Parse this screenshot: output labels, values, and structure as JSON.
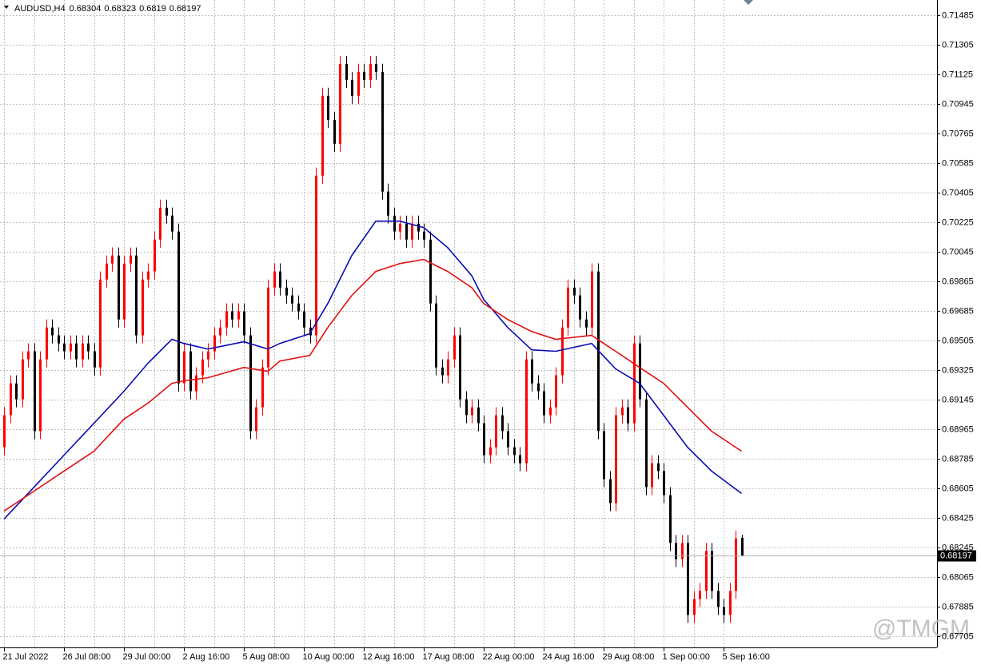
{
  "chart_data": {
    "type": "candlestick",
    "symbol": "AUDUSD,H4",
    "watermark": "@TMGM",
    "up_color": "#ff0000",
    "down_color": "#000000",
    "grid": true,
    "ylim": [
      0.67637,
      0.71577
    ],
    "yticks": [
      0.71485,
      0.71305,
      0.71125,
      0.70945,
      0.70765,
      0.70585,
      0.70405,
      0.70225,
      0.70045,
      0.69865,
      0.69685,
      0.69505,
      0.69325,
      0.69145,
      0.68965,
      0.68785,
      0.68605,
      0.68425,
      0.68245,
      0.68065,
      0.67885,
      0.67705
    ],
    "categories": [
      "21 Jul 2022",
      null,
      null,
      null,
      null,
      null,
      null,
      null,
      null,
      null,
      "26 Jul 08:00",
      null,
      null,
      null,
      null,
      null,
      null,
      null,
      null,
      null,
      "29 Jul 00:00",
      null,
      null,
      null,
      null,
      null,
      null,
      null,
      null,
      null,
      "2 Aug 16:00",
      null,
      null,
      null,
      null,
      null,
      null,
      null,
      null,
      null,
      "5 Aug 08:00",
      null,
      null,
      null,
      null,
      null,
      null,
      null,
      null,
      null,
      "10 Aug 00:00",
      null,
      null,
      null,
      null,
      null,
      null,
      null,
      null,
      null,
      "12 Aug 16:00",
      null,
      null,
      null,
      null,
      null,
      null,
      null,
      null,
      null,
      "17 Aug 08:00",
      null,
      null,
      null,
      null,
      null,
      null,
      null,
      null,
      null,
      "22 Aug 00:00",
      null,
      null,
      null,
      null,
      null,
      null,
      null,
      null,
      null,
      "24 Aug 16:00",
      null,
      null,
      null,
      null,
      null,
      null,
      null,
      null,
      null,
      "29 Aug 08:00",
      null,
      null,
      null,
      null,
      null,
      null,
      null,
      null,
      null,
      "1 Sep 00:00",
      null,
      null,
      null,
      null,
      null,
      null,
      null,
      null,
      null,
      "5 Sep 16:00",
      null,
      null,
      null
    ],
    "open": [
      0.68855,
      0.6905,
      0.69244,
      0.69147,
      0.6939,
      0.69439,
      0.68953,
      0.6939,
      0.69584,
      0.69536,
      0.69487,
      0.69439,
      0.69487,
      0.6939,
      0.69487,
      0.69439,
      0.69341,
      0.69876,
      0.69973,
      0.70022,
      0.69633,
      0.69973,
      0.70022,
      0.69536,
      0.69876,
      0.69925,
      0.70119,
      0.70313,
      0.70265,
      0.70168,
      0.69244,
      0.69439,
      0.69196,
      0.69293,
      0.6939,
      0.69439,
      0.69536,
      0.69584,
      0.69682,
      0.69633,
      0.69682,
      0.69536,
      0.68953,
      0.69098,
      0.69341,
      0.69827,
      0.69925,
      0.69827,
      0.69779,
      0.6973,
      0.69682,
      0.69584,
      0.69536,
      0.70508,
      0.70994,
      0.70848,
      0.70702,
      0.71188,
      0.71091,
      0.70994,
      0.7114,
      0.71091,
      0.71188,
      0.7114,
      0.70411,
      0.70265,
      0.70168,
      0.70216,
      0.70119,
      0.70216,
      0.70168,
      0.70119,
      0.6973,
      0.69341,
      0.69293,
      0.6939,
      0.69536,
      0.69147,
      0.6905,
      0.69098,
      0.69001,
      0.68807,
      0.68855,
      0.6905,
      0.68953,
      0.68855,
      0.68807,
      0.68758,
      0.6939,
      0.69244,
      0.69196,
      0.6905,
      0.69098,
      0.69293,
      0.69584,
      0.69827,
      0.69779,
      0.69633,
      0.69584,
      0.69925,
      0.68953,
      0.68661,
      0.68515,
      0.6905,
      0.69098,
      0.69001,
      0.69487,
      0.69147,
      0.68612,
      0.68758,
      0.6871,
      0.68564,
      0.68272,
      0.68175,
      0.68272,
      0.67835,
      0.67932,
      0.67981,
      0.68224,
      0.67981,
      0.67883,
      0.67835,
      0.67981,
      0.68304
    ],
    "high": [
      0.69099,
      0.69293,
      0.69293,
      0.69439,
      0.69488,
      0.69488,
      0.69439,
      0.69633,
      0.69633,
      0.69585,
      0.69536,
      0.69536,
      0.69536,
      0.69536,
      0.69536,
      0.69488,
      0.69925,
      0.70022,
      0.70071,
      0.70071,
      0.70022,
      0.70071,
      0.70071,
      0.69925,
      0.69974,
      0.70168,
      0.70362,
      0.70362,
      0.70314,
      0.70217,
      0.69488,
      0.69488,
      0.69342,
      0.69439,
      0.69488,
      0.69585,
      0.69633,
      0.69731,
      0.69731,
      0.69731,
      0.69731,
      0.69585,
      0.69147,
      0.6939,
      0.69876,
      0.69974,
      0.69974,
      0.69876,
      0.69828,
      0.69779,
      0.69731,
      0.69633,
      0.70557,
      0.71043,
      0.71043,
      0.70897,
      0.71237,
      0.71237,
      0.7114,
      0.71189,
      0.71189,
      0.71237,
      0.71237,
      0.71189,
      0.7046,
      0.70314,
      0.70265,
      0.70265,
      0.70265,
      0.70265,
      0.70217,
      0.70168,
      0.69779,
      0.6939,
      0.69439,
      0.69585,
      0.69585,
      0.69196,
      0.69147,
      0.69147,
      0.6905,
      0.68904,
      0.69099,
      0.69099,
      0.69002,
      0.68904,
      0.68856,
      0.69439,
      0.69439,
      0.69293,
      0.69245,
      0.69147,
      0.69342,
      0.69633,
      0.69876,
      0.69876,
      0.69828,
      0.69682,
      0.69974,
      0.69974,
      0.69002,
      0.6871,
      0.69099,
      0.69147,
      0.69147,
      0.69536,
      0.69536,
      0.69196,
      0.68807,
      0.68807,
      0.68759,
      0.68613,
      0.68321,
      0.68321,
      0.68321,
      0.67981,
      0.6803,
      0.68273,
      0.68273,
      0.6803,
      0.67932,
      0.6803,
      0.68349,
      0.68323
    ],
    "low": [
      0.68806,
      0.69001,
      0.69098,
      0.69098,
      0.69341,
      0.68904,
      0.68904,
      0.69341,
      0.69487,
      0.69438,
      0.6939,
      0.6939,
      0.69341,
      0.69341,
      0.6939,
      0.69292,
      0.69292,
      0.69827,
      0.69924,
      0.69584,
      0.69584,
      0.69924,
      0.69487,
      0.69487,
      0.69827,
      0.69876,
      0.7007,
      0.70216,
      0.70119,
      0.69195,
      0.69195,
      0.69147,
      0.69147,
      0.69244,
      0.69341,
      0.6939,
      0.69487,
      0.69535,
      0.69584,
      0.69584,
      0.69487,
      0.68904,
      0.68904,
      0.69049,
      0.69292,
      0.69778,
      0.69778,
      0.6973,
      0.69681,
      0.69633,
      0.69535,
      0.69487,
      0.69487,
      0.70459,
      0.70799,
      0.70653,
      0.70653,
      0.71042,
      0.70945,
      0.70945,
      0.71042,
      0.71042,
      0.71091,
      0.70362,
      0.70216,
      0.70119,
      0.70119,
      0.7007,
      0.7007,
      0.70119,
      0.7007,
      0.69681,
      0.69292,
      0.69244,
      0.69244,
      0.69341,
      0.69098,
      0.69001,
      0.69001,
      0.68952,
      0.68758,
      0.68758,
      0.68806,
      0.68904,
      0.68806,
      0.68758,
      0.68709,
      0.68709,
      0.69195,
      0.69147,
      0.69001,
      0.69001,
      0.69049,
      0.69244,
      0.69535,
      0.6973,
      0.69584,
      0.69535,
      0.69535,
      0.68904,
      0.68612,
      0.68466,
      0.68466,
      0.69001,
      0.68952,
      0.68952,
      0.69098,
      0.68563,
      0.68563,
      0.68661,
      0.68515,
      0.68223,
      0.68126,
      0.68126,
      0.67786,
      0.67786,
      0.67883,
      0.67932,
      0.67932,
      0.67834,
      0.67786,
      0.67786,
      0.67932,
      0.6819
    ],
    "close": [
      0.6905,
      0.69244,
      0.69147,
      0.6939,
      0.69439,
      0.68953,
      0.6939,
      0.69584,
      0.69536,
      0.69487,
      0.69439,
      0.69487,
      0.6939,
      0.69487,
      0.69439,
      0.69341,
      0.69876,
      0.69973,
      0.70022,
      0.69633,
      0.69973,
      0.70022,
      0.69536,
      0.69876,
      0.69925,
      0.70119,
      0.70313,
      0.70265,
      0.70168,
      0.69244,
      0.69439,
      0.69196,
      0.69293,
      0.6939,
      0.69439,
      0.69536,
      0.69584,
      0.69682,
      0.69633,
      0.69682,
      0.69536,
      0.68953,
      0.69098,
      0.69341,
      0.69827,
      0.69925,
      0.69827,
      0.69779,
      0.6973,
      0.69682,
      0.69584,
      0.69536,
      0.70508,
      0.70994,
      0.70848,
      0.70702,
      0.71188,
      0.71091,
      0.70994,
      0.7114,
      0.71091,
      0.71188,
      0.7114,
      0.70411,
      0.70265,
      0.70168,
      0.70216,
      0.70119,
      0.70216,
      0.70168,
      0.70119,
      0.6973,
      0.69341,
      0.69293,
      0.6939,
      0.69536,
      0.69147,
      0.6905,
      0.69098,
      0.69001,
      0.68807,
      0.68855,
      0.6905,
      0.68953,
      0.68855,
      0.68807,
      0.68758,
      0.6939,
      0.69244,
      0.69196,
      0.6905,
      0.69098,
      0.69293,
      0.69584,
      0.69827,
      0.69779,
      0.69633,
      0.69584,
      0.69925,
      0.68953,
      0.68661,
      0.68515,
      0.6905,
      0.69098,
      0.69001,
      0.69487,
      0.69147,
      0.68612,
      0.68758,
      0.6871,
      0.68564,
      0.68272,
      0.68175,
      0.68272,
      0.67835,
      0.67932,
      0.67981,
      0.68224,
      0.67981,
      0.67883,
      0.67835,
      0.67981,
      0.683,
      0.68197
    ],
    "moving_averages": [
      {
        "color": "#0a0ab4",
        "x": [
          0,
          5,
          10,
          15,
          20,
          24,
          28,
          30,
          34,
          40,
          44,
          46,
          51,
          54,
          58,
          62,
          66,
          70,
          74,
          78,
          80,
          84,
          88,
          92,
          98,
          102,
          106,
          110,
          114,
          118,
          123
        ],
        "values": [
          0.68418,
          0.68612,
          0.68807,
          0.69001,
          0.69196,
          0.69366,
          0.69512,
          0.69487,
          0.69453,
          0.69497,
          0.69453,
          0.69487,
          0.69546,
          0.6973,
          0.70022,
          0.70231,
          0.70231,
          0.70192,
          0.7007,
          0.699,
          0.69755,
          0.69584,
          0.69448,
          0.69439,
          0.69487,
          0.69332,
          0.69244,
          0.6905,
          0.68855,
          0.6871,
          0.68574
        ]
      },
      {
        "color": "#e01010",
        "x": [
          0,
          5,
          10,
          15,
          20,
          24,
          28,
          30,
          34,
          40,
          44,
          46,
          51,
          54,
          58,
          62,
          66,
          70,
          74,
          78,
          80,
          84,
          88,
          92,
          98,
          102,
          106,
          110,
          114,
          118,
          123
        ],
        "values": [
          0.68467,
          0.68588,
          0.6871,
          0.68831,
          0.69026,
          0.69123,
          0.69244,
          0.69259,
          0.69278,
          0.69341,
          0.69317,
          0.6938,
          0.69414,
          0.69584,
          0.69779,
          0.69925,
          0.69973,
          0.69998,
          0.69925,
          0.69827,
          0.6973,
          0.69633,
          0.6956,
          0.69512,
          0.69536,
          0.69439,
          0.69341,
          0.69244,
          0.69098,
          0.68953,
          0.68831
        ]
      }
    ]
  }
}
